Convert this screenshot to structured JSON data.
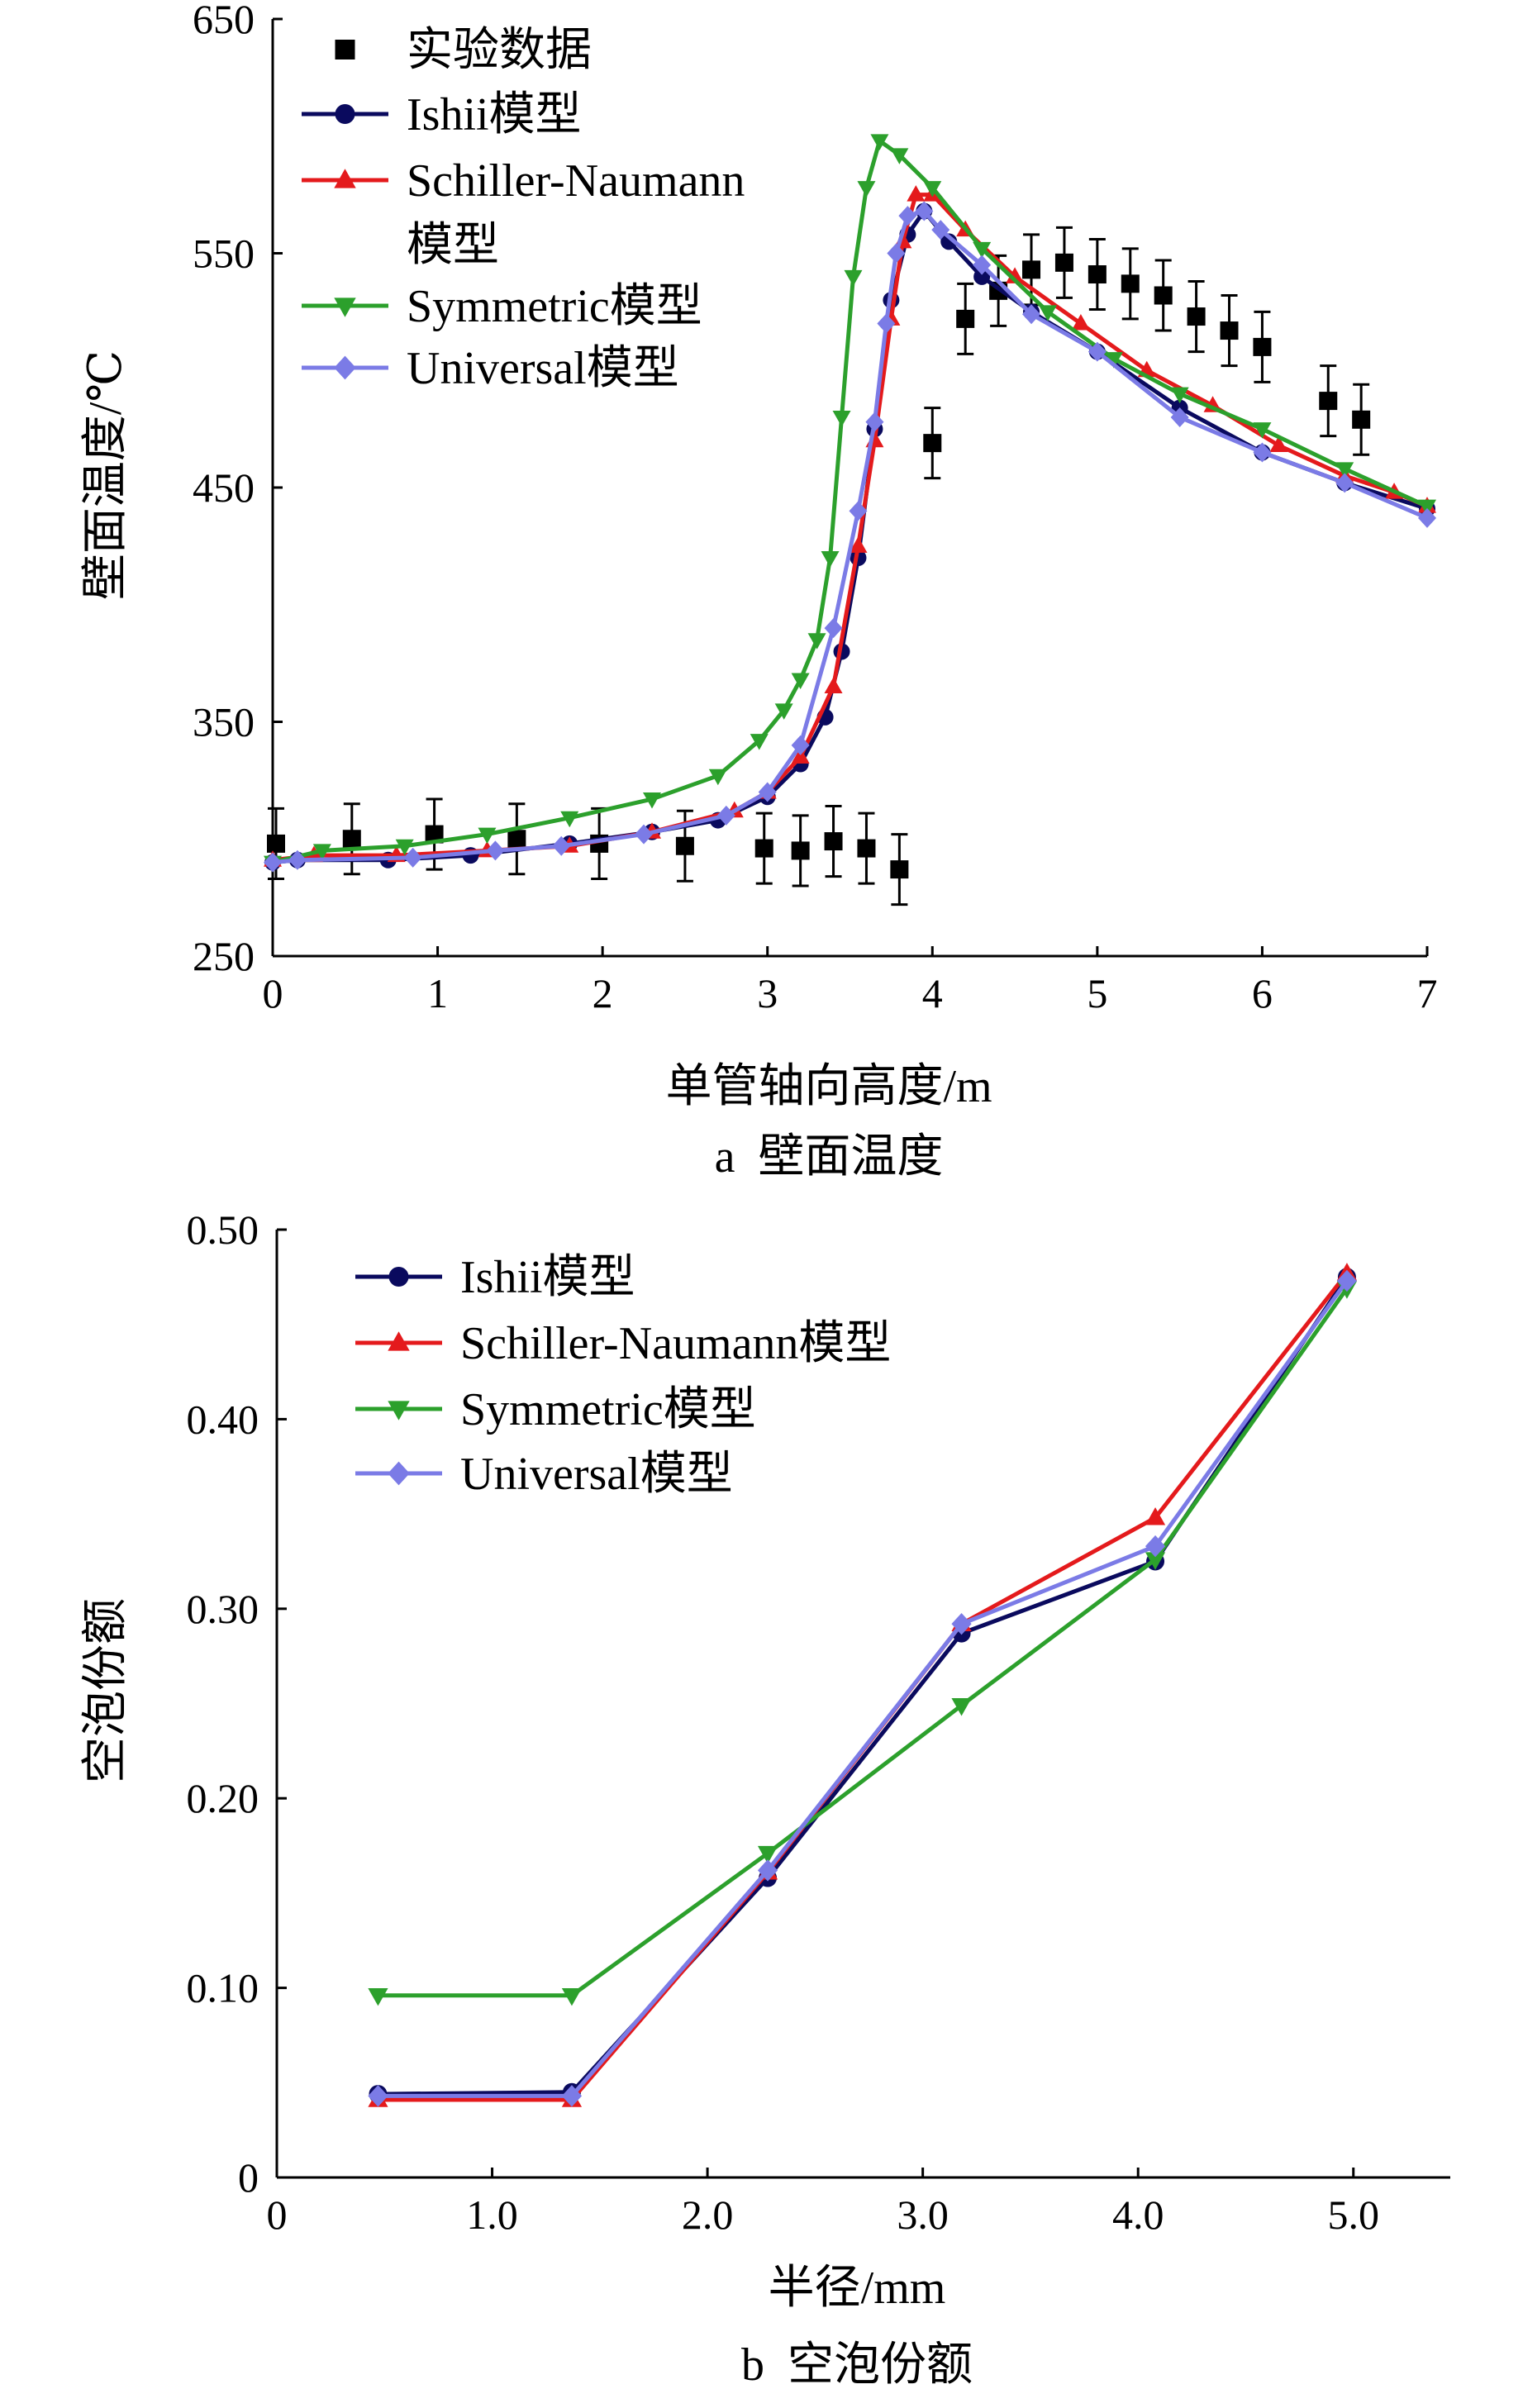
{
  "chart_data": [
    {
      "type": "line",
      "caption": "a  壁面温度",
      "xlabel": "单管轴向高度/m",
      "ylabel": "壁面温度/℃",
      "xlim": [
        0,
        7
      ],
      "ylim": [
        250,
        650
      ],
      "xticks": [
        0,
        1,
        2,
        3,
        4,
        5,
        6,
        7
      ],
      "yticks": [
        250,
        350,
        450,
        550,
        650
      ],
      "grid": false,
      "legend_position": "top-left",
      "series": [
        {
          "name": "实验数据",
          "kind": "points-with-errorbars",
          "marker": "square",
          "color": "#000000",
          "x": [
            0.02,
            0.48,
            0.98,
            1.48,
            1.98,
            2.5,
            2.98,
            3.2,
            3.4,
            3.6,
            3.8,
            4.0,
            4.2,
            4.4,
            4.6,
            4.8,
            5.0,
            5.2,
            5.4,
            5.6,
            5.8,
            6.0,
            6.4,
            6.6
          ],
          "y": [
            298,
            300,
            302,
            300,
            298,
            297,
            296,
            295,
            299,
            296,
            287,
            469,
            522,
            534,
            543,
            546,
            541,
            537,
            532,
            523,
            517,
            510,
            487,
            479
          ],
          "err": [
            15,
            15,
            15,
            15,
            15,
            15,
            15,
            15,
            15,
            15,
            15,
            15,
            15,
            15,
            15,
            15,
            15,
            15,
            15,
            15,
            15,
            15,
            15,
            15
          ]
        },
        {
          "name": "Ishii模型",
          "color": "#0a0a5e",
          "marker": "circle",
          "x": [
            0,
            0.15,
            0.7,
            1.2,
            1.8,
            2.3,
            2.7,
            3.0,
            3.2,
            3.35,
            3.45,
            3.55,
            3.65,
            3.75,
            3.85,
            3.95,
            4.1,
            4.3,
            4.6,
            5.0,
            5.5,
            6.0,
            6.5,
            7.0
          ],
          "y": [
            290,
            291,
            291,
            293,
            298,
            303,
            308,
            318,
            332,
            352,
            380,
            420,
            475,
            530,
            558,
            568,
            555,
            540,
            525,
            508,
            484,
            465,
            452,
            441
          ]
        },
        {
          "name": "Schiller-Naumann模型",
          "color": "#e41a1c",
          "marker": "triangle-up",
          "x": [
            0,
            0.25,
            0.75,
            1.3,
            1.8,
            2.3,
            2.8,
            3.0,
            3.2,
            3.4,
            3.55,
            3.65,
            3.75,
            3.82,
            3.9,
            4.0,
            4.2,
            4.5,
            4.9,
            5.3,
            5.7,
            6.1,
            6.5,
            6.8,
            7.0
          ],
          "y": [
            291,
            293,
            293,
            295,
            297,
            303,
            312,
            320,
            335,
            365,
            425,
            470,
            522,
            555,
            575,
            575,
            560,
            540,
            520,
            500,
            485,
            468,
            455,
            448,
            442
          ]
        },
        {
          "name": "Symmetric模型",
          "color": "#2ca02c",
          "marker": "triangle-down",
          "x": [
            0,
            0.3,
            0.8,
            1.3,
            1.8,
            2.3,
            2.7,
            2.95,
            3.1,
            3.2,
            3.3,
            3.38,
            3.45,
            3.52,
            3.6,
            3.68,
            3.8,
            4.0,
            4.3,
            4.7,
            5.1,
            5.5,
            6.0,
            6.5,
            7.0
          ],
          "y": [
            290,
            295,
            297,
            302,
            309,
            317,
            327,
            342,
            355,
            368,
            385,
            420,
            480,
            540,
            578,
            598,
            592,
            578,
            552,
            525,
            505,
            490,
            475,
            458,
            442
          ]
        },
        {
          "name": "Universal模型",
          "color": "#7b7be6",
          "marker": "diamond",
          "x": [
            0,
            0.15,
            0.85,
            1.35,
            1.75,
            2.25,
            2.75,
            3.0,
            3.2,
            3.4,
            3.55,
            3.65,
            3.72,
            3.78,
            3.85,
            3.95,
            4.05,
            4.3,
            4.6,
            5.0,
            5.5,
            6.0,
            6.5,
            7.0
          ],
          "y": [
            290,
            291,
            292,
            295,
            297,
            302,
            310,
            320,
            340,
            390,
            440,
            478,
            520,
            550,
            566,
            568,
            560,
            545,
            524,
            508,
            480,
            465,
            452,
            437
          ]
        }
      ]
    },
    {
      "type": "line",
      "caption": "b  空泡份额",
      "xlabel": "半径/mm",
      "ylabel": "空泡份额",
      "xlim": [
        0,
        5.45
      ],
      "ylim": [
        0,
        0.5
      ],
      "xticks": [
        "0",
        "1.0",
        "2.0",
        "3.0",
        "4.0",
        "5.0"
      ],
      "yticks": [
        "0",
        "0.10",
        "0.20",
        "0.30",
        "0.40",
        "0.50"
      ],
      "grid": false,
      "legend_position": "top-left",
      "series": [
        {
          "name": "Ishii模型",
          "color": "#0a0a5e",
          "marker": "circle",
          "x": [
            0.47,
            1.37,
            2.28,
            3.18,
            4.08,
            4.97
          ],
          "y": [
            0.044,
            0.045,
            0.158,
            0.287,
            0.325,
            0.475
          ]
        },
        {
          "name": "Schiller-Naumann模型",
          "color": "#e41a1c",
          "marker": "triangle-up",
          "x": [
            0.47,
            1.37,
            2.28,
            3.18,
            4.08,
            4.97
          ],
          "y": [
            0.041,
            0.041,
            0.161,
            0.292,
            0.348,
            0.477
          ]
        },
        {
          "name": "Symmetric模型",
          "color": "#2ca02c",
          "marker": "triangle-down",
          "x": [
            0.47,
            1.37,
            2.28,
            3.18,
            4.08,
            4.97
          ],
          "y": [
            0.096,
            0.096,
            0.171,
            0.249,
            0.326,
            0.469
          ]
        },
        {
          "name": "Universal模型",
          "color": "#7b7be6",
          "marker": "diamond",
          "x": [
            0.47,
            1.37,
            2.28,
            3.18,
            4.08,
            4.97
          ],
          "y": [
            0.043,
            0.043,
            0.162,
            0.292,
            0.333,
            0.473
          ]
        }
      ]
    }
  ]
}
